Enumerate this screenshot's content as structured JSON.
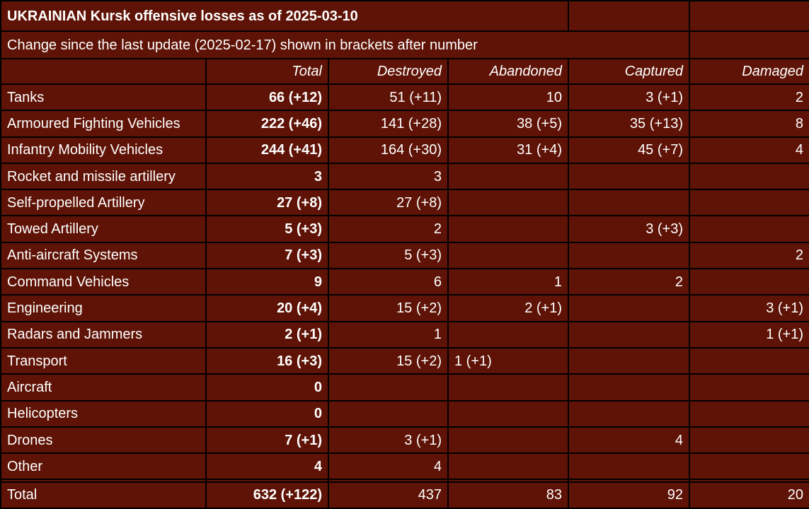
{
  "colors": {
    "background": "#5e1306",
    "grid": "#000000",
    "text": "#ffffff"
  },
  "table": {
    "title": "UKRAINIAN Kursk offensive losses as of 2025-03-10",
    "subtitle": "Change since the last update (2025-02-17) shown in brackets after number",
    "columns": [
      "",
      "Total",
      "Destroyed",
      "Abandoned",
      "Captured",
      "Damaged"
    ],
    "rows": [
      {
        "label": "Tanks",
        "total": "66 (+12)",
        "destroyed": "51 (+11)",
        "abandoned": "10",
        "captured": "3 (+1)",
        "damaged": "2"
      },
      {
        "label": "Armoured Fighting Vehicles",
        "total": "222 (+46)",
        "destroyed": "141 (+28)",
        "abandoned": "38 (+5)",
        "captured": "35 (+13)",
        "damaged": "8"
      },
      {
        "label": "Infantry Mobility Vehicles",
        "total": "244 (+41)",
        "destroyed": "164 (+30)",
        "abandoned": "31 (+4)",
        "captured": "45 (+7)",
        "damaged": "4"
      },
      {
        "label": "Rocket and missile artillery",
        "total": "3",
        "destroyed": "3",
        "abandoned": "",
        "captured": "",
        "damaged": ""
      },
      {
        "label": "Self-propelled Artillery",
        "total": "27 (+8)",
        "destroyed": "27 (+8)",
        "abandoned": "",
        "captured": "",
        "damaged": ""
      },
      {
        "label": "Towed Artillery",
        "total": "5 (+3)",
        "destroyed": "2",
        "abandoned": "",
        "captured": "3 (+3)",
        "damaged": ""
      },
      {
        "label": "Anti-aircraft Systems",
        "total": "7 (+3)",
        "destroyed": "5 (+3)",
        "abandoned": "",
        "captured": "",
        "damaged": "2"
      },
      {
        "label": "Command Vehicles",
        "total": "9",
        "destroyed": "6",
        "abandoned": "1",
        "captured": "2",
        "damaged": ""
      },
      {
        "label": "Engineering",
        "total": "20 (+4)",
        "destroyed": "15 (+2)",
        "abandoned": "2 (+1)",
        "captured": "",
        "damaged": "3 (+1)"
      },
      {
        "label": "Radars and Jammers",
        "total": "2 (+1)",
        "destroyed": "1",
        "abandoned": "",
        "captured": "",
        "damaged": "1 (+1)"
      },
      {
        "label": "Transport",
        "total": "16 (+3)",
        "destroyed": "15 (+2)",
        "abandoned": "1 (+1)",
        "abandoned_align": "left",
        "captured": "",
        "damaged": ""
      },
      {
        "label": "Aircraft",
        "total": "0",
        "destroyed": "",
        "abandoned": "",
        "captured": "",
        "damaged": ""
      },
      {
        "label": "Helicopters",
        "total": "0",
        "destroyed": "",
        "abandoned": "",
        "captured": "",
        "damaged": ""
      },
      {
        "label": "Drones",
        "total": "7 (+1)",
        "destroyed": "3 (+1)",
        "abandoned": "",
        "captured": "4",
        "damaged": ""
      },
      {
        "label": "Other",
        "total": "4",
        "destroyed": "4",
        "abandoned": "",
        "captured": "",
        "damaged": ""
      },
      {
        "label": "",
        "total": "",
        "destroyed": "",
        "abandoned": "",
        "captured": "",
        "damaged": ""
      }
    ],
    "total_row": {
      "label": "Total",
      "total": "632 (+122)",
      "destroyed": "437",
      "abandoned": "83",
      "captured": "92",
      "damaged": "20"
    }
  },
  "chart_data": {
    "type": "table",
    "title": "UKRAINIAN Kursk offensive losses as of 2025-03-10",
    "subtitle": "Change since the last update (2025-02-17) shown in brackets after number",
    "columns": [
      "Category",
      "Total",
      "Destroyed",
      "Abandoned",
      "Captured",
      "Damaged"
    ],
    "rows": [
      [
        "Tanks",
        "66 (+12)",
        "51 (+11)",
        "10",
        "3 (+1)",
        "2"
      ],
      [
        "Armoured Fighting Vehicles",
        "222 (+46)",
        "141 (+28)",
        "38 (+5)",
        "35 (+13)",
        "8"
      ],
      [
        "Infantry Mobility Vehicles",
        "244 (+41)",
        "164 (+30)",
        "31 (+4)",
        "45 (+7)",
        "4"
      ],
      [
        "Rocket and missile artillery",
        "3",
        "3",
        "",
        "",
        ""
      ],
      [
        "Self-propelled Artillery",
        "27 (+8)",
        "27 (+8)",
        "",
        "",
        ""
      ],
      [
        "Towed Artillery",
        "5 (+3)",
        "2",
        "",
        "3 (+3)",
        ""
      ],
      [
        "Anti-aircraft Systems",
        "7 (+3)",
        "5 (+3)",
        "",
        "",
        "2"
      ],
      [
        "Command Vehicles",
        "9",
        "6",
        "1",
        "2",
        ""
      ],
      [
        "Engineering",
        "20 (+4)",
        "15 (+2)",
        "2 (+1)",
        "",
        "3 (+1)"
      ],
      [
        "Radars and Jammers",
        "2 (+1)",
        "1",
        "",
        "",
        "1 (+1)"
      ],
      [
        "Transport",
        "16 (+3)",
        "15 (+2)",
        "1 (+1)",
        "",
        ""
      ],
      [
        "Aircraft",
        "0",
        "",
        "",
        "",
        ""
      ],
      [
        "Helicopters",
        "0",
        "",
        "",
        "",
        ""
      ],
      [
        "Drones",
        "7 (+1)",
        "3 (+1)",
        "",
        "4",
        ""
      ],
      [
        "Other",
        "4",
        "4",
        "",
        "",
        ""
      ],
      [
        "",
        "",
        "",
        "",
        "",
        ""
      ],
      [
        "Total",
        "632 (+122)",
        "437",
        "83",
        "92",
        "20"
      ]
    ]
  }
}
